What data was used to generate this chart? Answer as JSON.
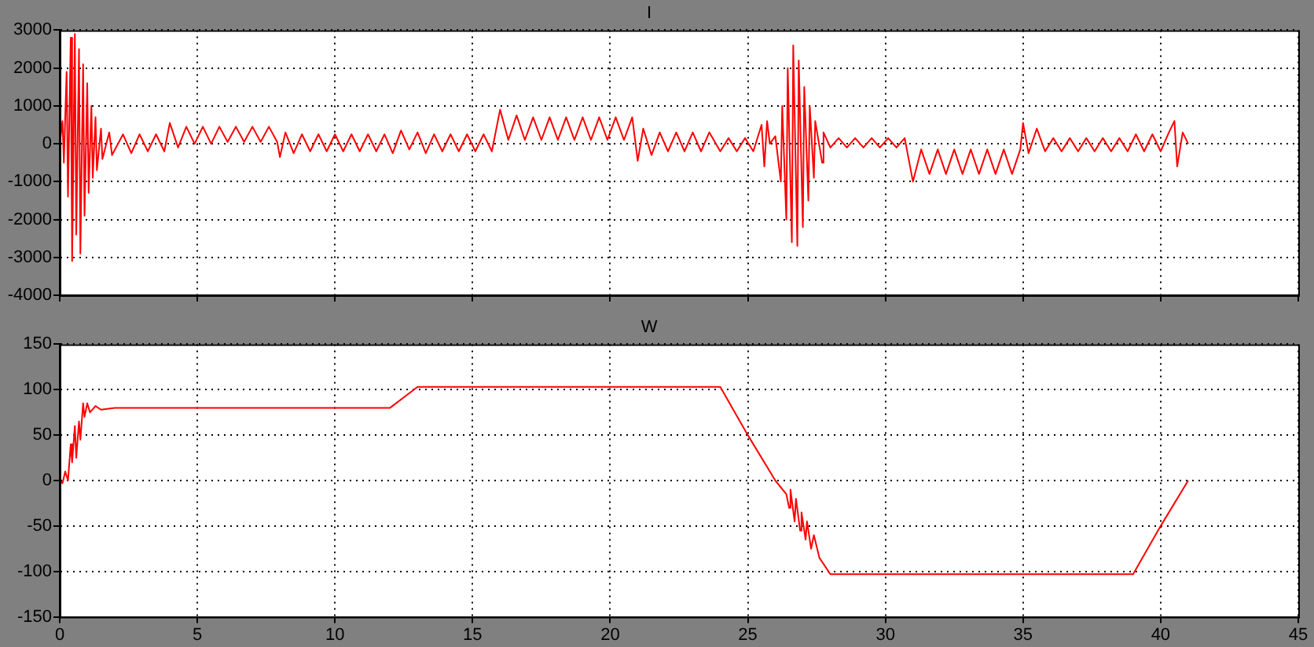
{
  "chart_data": [
    {
      "type": "line",
      "title": "I",
      "xlim": [
        0,
        45
      ],
      "xticks": [
        0,
        5,
        10,
        15,
        20,
        25,
        30,
        35,
        40,
        45
      ],
      "ylim": [
        -4000,
        3000
      ],
      "yticks": [
        -4000,
        -3000,
        -2000,
        -1000,
        0,
        1000,
        2000,
        3000
      ],
      "grid": true,
      "tick_labels": "y",
      "marker": "none",
      "x": [
        0,
        0.1,
        0.15,
        0.25,
        0.3,
        0.4,
        0.45,
        0.55,
        0.6,
        0.7,
        0.75,
        0.85,
        0.9,
        1.0,
        1.05,
        1.15,
        1.2,
        1.3,
        1.35,
        1.5,
        1.55,
        1.8,
        1.9,
        2.3,
        2.6,
        2.9,
        3.2,
        3.5,
        3.8,
        4.0,
        4.3,
        4.6,
        4.9,
        5.2,
        5.5,
        5.8,
        6.1,
        6.4,
        6.7,
        7.0,
        7.3,
        7.6,
        7.9,
        8.0,
        8.2,
        8.5,
        8.8,
        9.1,
        9.4,
        9.7,
        10.0,
        10.3,
        10.6,
        10.9,
        11.2,
        11.5,
        11.8,
        12.1,
        12.4,
        12.7,
        13.0,
        13.3,
        13.6,
        13.9,
        14.2,
        14.5,
        14.8,
        15.1,
        15.4,
        15.7,
        16.0,
        16.3,
        16.6,
        16.9,
        17.2,
        17.5,
        17.8,
        18.1,
        18.4,
        18.7,
        19.0,
        19.3,
        19.6,
        19.9,
        20.2,
        20.5,
        20.8,
        21.0,
        21.2,
        21.5,
        21.8,
        22.1,
        22.4,
        22.7,
        23.0,
        23.3,
        23.6,
        24.0,
        24.3,
        24.6,
        24.9,
        25.2,
        25.5,
        25.6,
        25.7,
        25.8,
        26.0,
        26.2,
        26.25,
        26.4,
        26.45,
        26.6,
        26.65,
        26.8,
        26.85,
        27.0,
        27.05,
        27.2,
        27.25,
        27.4,
        27.45,
        27.7,
        27.75,
        28.0,
        28.3,
        28.6,
        28.9,
        29.2,
        29.5,
        29.8,
        30.1,
        30.4,
        30.7,
        31.0,
        31.3,
        31.6,
        31.9,
        32.2,
        32.5,
        32.8,
        33.1,
        33.4,
        33.7,
        34.0,
        34.3,
        34.6,
        34.9,
        35.0,
        35.2,
        35.5,
        35.8,
        36.1,
        36.4,
        36.7,
        37.0,
        37.3,
        37.6,
        37.9,
        38.2,
        38.5,
        38.8,
        39.1,
        39.4,
        39.7,
        40.0,
        40.3,
        40.5,
        40.6,
        40.8,
        41.0
      ],
      "series": [
        {
          "color": "#ff0000",
          "values": [
            0,
            600,
            -500,
            1900,
            -1400,
            2800,
            -3100,
            2900,
            -2400,
            2500,
            -2900,
            2100,
            -1900,
            1600,
            -1300,
            1000,
            -900,
            700,
            -700,
            400,
            -400,
            300,
            -300,
            250,
            -250,
            250,
            -200,
            250,
            -200,
            550,
            -100,
            450,
            0,
            450,
            0,
            450,
            50,
            450,
            50,
            450,
            50,
            450,
            50,
            -350,
            300,
            -250,
            250,
            -200,
            250,
            -200,
            250,
            -200,
            250,
            -200,
            250,
            -200,
            250,
            -250,
            350,
            -150,
            300,
            -250,
            250,
            -200,
            250,
            -200,
            250,
            -200,
            250,
            -200,
            900,
            100,
            750,
            100,
            700,
            100,
            700,
            100,
            700,
            100,
            700,
            100,
            700,
            100,
            700,
            100,
            700,
            -450,
            400,
            -300,
            300,
            -200,
            300,
            -200,
            300,
            -200,
            300,
            -200,
            150,
            -200,
            150,
            -200,
            500,
            -600,
            600,
            0,
            200,
            -1000,
            1000,
            -2000,
            2000,
            -2600,
            2600,
            -2700,
            2200,
            -2200,
            1500,
            -1500,
            1000,
            -900,
            600,
            -500,
            300,
            -100,
            150,
            -100,
            150,
            -100,
            150,
            -100,
            150,
            -100,
            150,
            -1000,
            -150,
            -800,
            -150,
            -800,
            -150,
            -800,
            -150,
            -800,
            -150,
            -800,
            -150,
            -800,
            -150,
            550,
            -250,
            400,
            -200,
            150,
            -200,
            150,
            -200,
            150,
            -200,
            150,
            -200,
            150,
            -200,
            250,
            -200,
            250,
            -200,
            300,
            600,
            -600,
            300,
            0
          ]
        }
      ]
    },
    {
      "type": "line",
      "title": "W",
      "xlim": [
        0,
        45
      ],
      "xticks": [
        0,
        5,
        10,
        15,
        20,
        25,
        30,
        35,
        40,
        45
      ],
      "ylim": [
        -150,
        150
      ],
      "yticks": [
        -150,
        -100,
        -50,
        0,
        50,
        100,
        150
      ],
      "grid": true,
      "marker": "none",
      "x": [
        0,
        0.1,
        0.2,
        0.3,
        0.4,
        0.45,
        0.55,
        0.6,
        0.7,
        0.75,
        0.85,
        0.9,
        1.0,
        1.1,
        1.3,
        1.5,
        2,
        12,
        13,
        24,
        25,
        26,
        26.4,
        26.5,
        26.55,
        26.7,
        26.75,
        26.9,
        26.95,
        27.1,
        27.15,
        27.3,
        27.4,
        27.6,
        28,
        39,
        40,
        41
      ],
      "series": [
        {
          "color": "#ff0000",
          "values": [
            0,
            -3,
            10,
            0,
            40,
            20,
            60,
            25,
            65,
            45,
            85,
            70,
            85,
            75,
            82,
            78,
            80,
            80,
            103,
            103,
            50,
            0,
            -15,
            -30,
            -10,
            -45,
            -20,
            -55,
            -35,
            -65,
            -45,
            -75,
            -60,
            -85,
            -103,
            -103,
            -50,
            0
          ]
        }
      ]
    }
  ]
}
